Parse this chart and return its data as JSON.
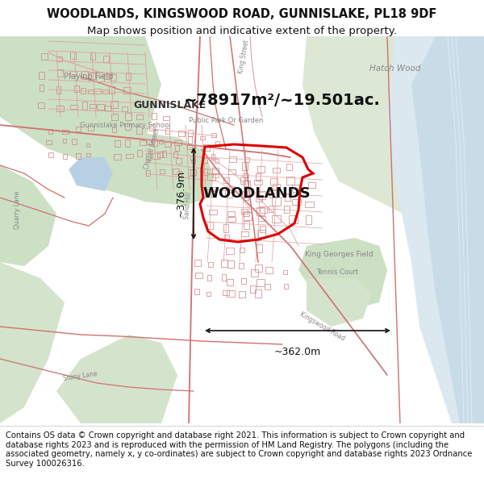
{
  "title_line1": "WOODLANDS, KINGSWOOD ROAD, GUNNISLAKE, PL18 9DF",
  "title_line2": "Map shows position and indicative extent of the property.",
  "title_fontsize": 10.5,
  "subtitle_fontsize": 9.5,
  "label_area": "~78917m²/~19.501ac.",
  "label_width": "~362.0m",
  "label_height": "~376.9m",
  "label_woodlands": "WOODLANDS",
  "footer_text": "Contains OS data © Crown copyright and database right 2021. This information is subject to Crown copyright and database rights 2023 and is reproduced with the permission of HM Land Registry. The polygons (including the associated geometry, namely x, y co-ordinates) are subject to Crown copyright and database rights 2023 Ordnance Survey 100026316.",
  "footer_fontsize": 7.2,
  "map_bg": "#ffffff",
  "green1": "#dce8d4",
  "green2": "#cce0c4",
  "green3": "#d4e4cc",
  "water_blue": "#c8dce8",
  "water_light": "#dce8f0",
  "pond_blue": "#b8d0e4",
  "road_pink": "#e8b4b4",
  "road_red": "#d07070",
  "road_thin": "#e0a0a0",
  "building_outline": "#d08080",
  "text_grey": "#888888",
  "text_dark": "#333333",
  "prop_red": "#dd0000",
  "prop_fill": "none"
}
